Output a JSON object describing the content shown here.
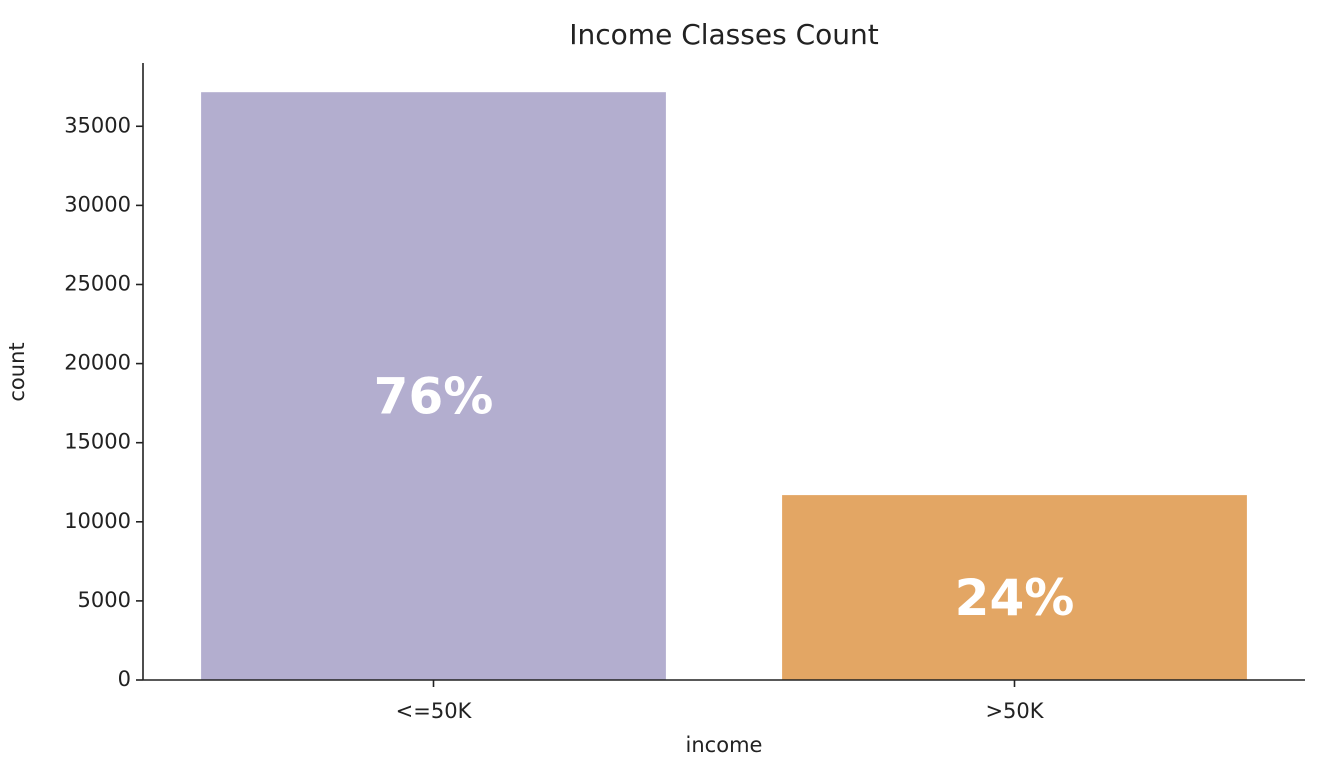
{
  "chart_data": {
    "type": "bar",
    "title": "Income Classes Count",
    "x_label": "income",
    "y_label": "count",
    "categories": [
      "<=50K",
      ">50K"
    ],
    "values": [
      37155,
      11687
    ],
    "colors": [
      "#b3aecf",
      "#e3a664"
    ],
    "annotations": [
      "76%",
      "24%"
    ],
    "ylim": [
      0,
      39000
    ],
    "yticks": [
      0,
      5000,
      10000,
      15000,
      20000,
      25000,
      30000,
      35000
    ],
    "grid": false
  }
}
